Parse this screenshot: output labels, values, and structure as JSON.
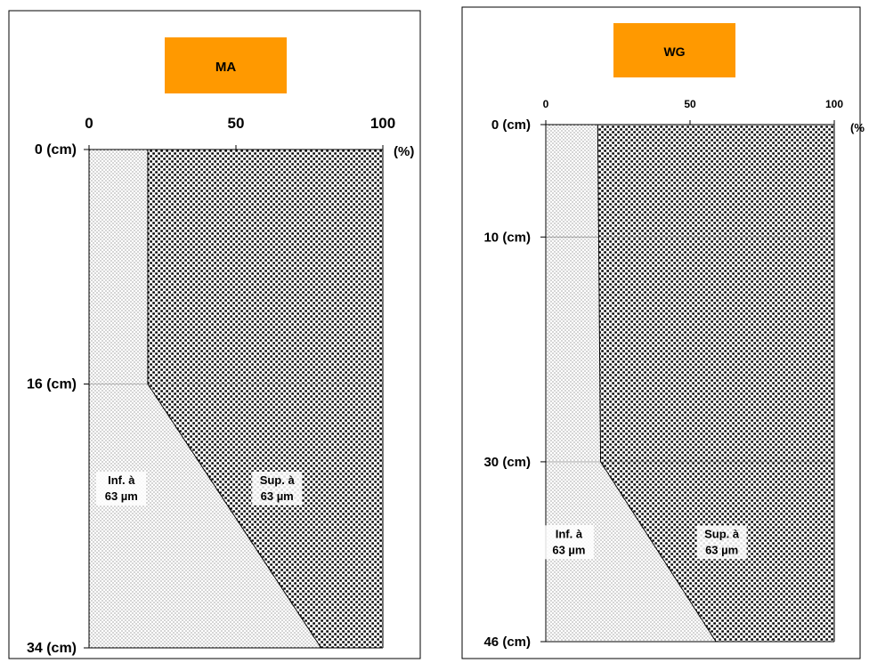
{
  "chart_data": [
    {
      "type": "area",
      "title": "MA",
      "title_bg": "#FF9900",
      "x_unit_label": "(%)",
      "x_ticks": [
        0,
        50,
        100
      ],
      "xlim": [
        0,
        100
      ],
      "depth_ticks": [
        {
          "value": 0,
          "label": "0 (cm)"
        },
        {
          "value": 16,
          "label": "16 (cm)"
        },
        {
          "value": 34,
          "label": "34 (cm)"
        }
      ],
      "ylim": [
        0,
        34
      ],
      "boundary": [
        {
          "depth": 0,
          "x": 20
        },
        {
          "depth": 16,
          "x": 20
        },
        {
          "depth": 34,
          "x": 79
        }
      ],
      "grid_lines_depth": [
        16
      ],
      "region_fine": {
        "line1": "Inf. à",
        "line2": "63 µm",
        "depth": 23,
        "x": 11
      },
      "region_coarse": {
        "line1": "Sup. à",
        "line2": "63 µm",
        "depth": 23,
        "x": 64
      }
    },
    {
      "type": "area",
      "title": "WG",
      "title_bg": "#FF9900",
      "x_unit_label": "(%",
      "x_ticks": [
        0,
        50,
        100
      ],
      "xlim": [
        0,
        100
      ],
      "depth_ticks": [
        {
          "value": 0,
          "label": "0 (cm)"
        },
        {
          "value": 10,
          "label": "10 (cm)"
        },
        {
          "value": 30,
          "label": "30 (cm)"
        },
        {
          "value": 46,
          "label": "46 (cm)"
        }
      ],
      "ylim": [
        0,
        46
      ],
      "boundary": [
        {
          "depth": 0,
          "x": 18
        },
        {
          "depth": 30,
          "x": 19
        },
        {
          "depth": 46,
          "x": 59
        }
      ],
      "grid_lines_depth": [
        10,
        30
      ],
      "region_fine": {
        "line1": "Inf. à",
        "line2": "63 µm",
        "depth": 37,
        "x": 8
      },
      "region_coarse": {
        "line1": "Sup. à",
        "line2": "63 µm",
        "depth": 37,
        "x": 61
      }
    }
  ]
}
